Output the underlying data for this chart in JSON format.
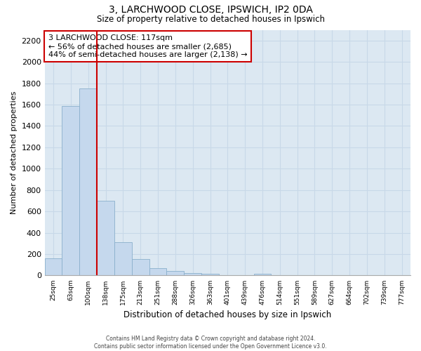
{
  "title": "3, LARCHWOOD CLOSE, IPSWICH, IP2 0DA",
  "subtitle": "Size of property relative to detached houses in Ipswich",
  "xlabel": "Distribution of detached houses by size in Ipswich",
  "ylabel": "Number of detached properties",
  "bar_labels": [
    "25sqm",
    "63sqm",
    "100sqm",
    "138sqm",
    "175sqm",
    "213sqm",
    "251sqm",
    "288sqm",
    "326sqm",
    "363sqm",
    "401sqm",
    "439sqm",
    "476sqm",
    "514sqm",
    "551sqm",
    "589sqm",
    "627sqm",
    "664sqm",
    "702sqm",
    "739sqm",
    "777sqm"
  ],
  "bar_values": [
    160,
    1590,
    1750,
    700,
    310,
    155,
    70,
    40,
    25,
    15,
    0,
    0,
    15,
    0,
    0,
    0,
    0,
    0,
    0,
    0,
    0
  ],
  "bar_color": "#c5d8ed",
  "bar_edge_color": "#8ab0cc",
  "vline_color": "#cc0000",
  "ylim": [
    0,
    2300
  ],
  "yticks": [
    0,
    200,
    400,
    600,
    800,
    1000,
    1200,
    1400,
    1600,
    1800,
    2000,
    2200
  ],
  "annotation_title": "3 LARCHWOOD CLOSE: 117sqm",
  "annotation_line1": "← 56% of detached houses are smaller (2,685)",
  "annotation_line2": "44% of semi-detached houses are larger (2,138) →",
  "annotation_box_color": "#ffffff",
  "annotation_box_edge": "#cc0000",
  "footer1": "Contains HM Land Registry data © Crown copyright and database right 2024.",
  "footer2": "Contains public sector information licensed under the Open Government Licence v3.0.",
  "grid_color": "#c8d8e8",
  "background_color": "#dce8f2"
}
